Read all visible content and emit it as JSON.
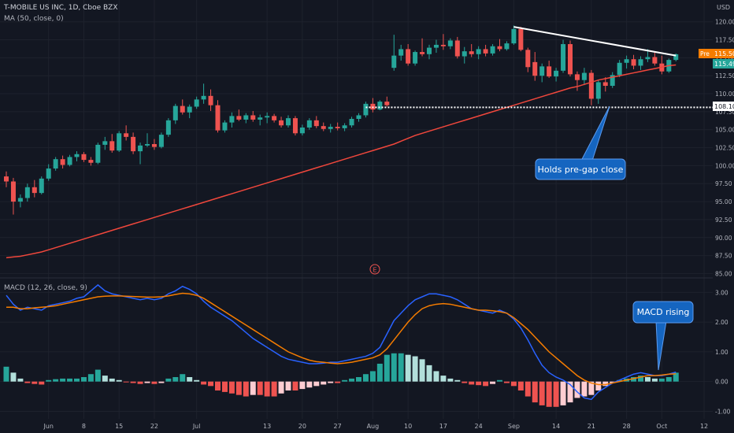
{
  "header": {
    "symbol_line": "T-MOBILE US INC, 1D, Cboe BZX",
    "ma_line": "MA (50, close, 0)",
    "currency": "USD",
    "macd_line": "MACD (12, 26, close, 9)"
  },
  "colors": {
    "background": "#131722",
    "grid": "#1e222d",
    "up": "#26a69a",
    "down": "#ef5350",
    "ma": "#f0473c",
    "macd": "#2962ff",
    "signal": "#f57c00",
    "hist_up_strong": "#26a69a",
    "hist_up_weak": "#b2dfdb",
    "hist_down_strong": "#ef5350",
    "hist_down_weak": "#ffcdd2",
    "label_blue": "#1565c0",
    "trendline": "#ffffff"
  },
  "price_axis": {
    "ticks": [
      "120.00",
      "117.50",
      "115.00",
      "112.50",
      "110.00",
      "107.50",
      "105.00",
      "102.50",
      "100.00",
      "97.50",
      "95.00",
      "92.50",
      "90.00",
      "87.50",
      "85.00"
    ],
    "tick_values": [
      120,
      117.5,
      115,
      112.5,
      110,
      107.5,
      105,
      102.5,
      100,
      97.5,
      95,
      92.5,
      90,
      87.5,
      85
    ],
    "range": [
      84.5,
      121.5
    ],
    "pre_label": "Pre",
    "pre_value": "115.50",
    "last_value": "115.49",
    "level_value": "108.10"
  },
  "macd_axis": {
    "ticks": [
      "3.00",
      "2.00",
      "1.00",
      "0.00",
      "-1.00"
    ],
    "tick_values": [
      3,
      2,
      1,
      0,
      -1
    ],
    "range": [
      -1.2,
      3.3
    ]
  },
  "time_axis": {
    "labels": [
      "Jun",
      "8",
      "15",
      "22",
      "Jul",
      "13",
      "20",
      "27",
      "Aug",
      "10",
      "17",
      "24",
      "Sep",
      "14",
      "21",
      "28",
      "Oct",
      "12"
    ],
    "label_index": [
      6,
      11,
      16,
      21,
      27,
      37,
      42,
      47,
      52,
      57,
      62,
      67,
      72,
      78,
      83,
      88,
      93,
      99
    ]
  },
  "earnings_marker": "E",
  "annotations": {
    "pregap": "Holds pre-gap close",
    "macd": "MACD rising"
  },
  "chart_data": {
    "type": "candlestick",
    "x_start_index": 0,
    "candles": [
      [
        98.5,
        99.2,
        97.0,
        97.8
      ],
      [
        97.8,
        98.3,
        93.2,
        95.0
      ],
      [
        95.0,
        96.0,
        94.2,
        95.5
      ],
      [
        95.5,
        97.5,
        95.0,
        97.0
      ],
      [
        97.0,
        98.0,
        95.6,
        96.2
      ],
      [
        96.2,
        98.5,
        96.0,
        98.2
      ],
      [
        98.2,
        100.2,
        97.9,
        99.6
      ],
      [
        99.6,
        101.2,
        99.3,
        100.9
      ],
      [
        100.9,
        101.4,
        99.6,
        100.1
      ],
      [
        100.1,
        101.5,
        99.9,
        101.2
      ],
      [
        101.2,
        102.0,
        100.6,
        101.6
      ],
      [
        101.6,
        101.9,
        100.5,
        100.8
      ],
      [
        100.8,
        101.2,
        100.0,
        100.4
      ],
      [
        100.4,
        103.2,
        100.2,
        102.9
      ],
      [
        102.9,
        104.0,
        102.2,
        103.4
      ],
      [
        103.4,
        104.4,
        101.8,
        102.1
      ],
      [
        102.1,
        104.8,
        101.9,
        104.5
      ],
      [
        104.5,
        105.6,
        103.5,
        104.0
      ],
      [
        104.0,
        104.6,
        101.6,
        102.0
      ],
      [
        102.0,
        103.2,
        100.2,
        102.8
      ],
      [
        102.8,
        104.5,
        102.6,
        103.0
      ],
      [
        103.0,
        103.7,
        102.2,
        102.6
      ],
      [
        102.6,
        104.6,
        102.4,
        104.3
      ],
      [
        104.3,
        106.6,
        104.0,
        106.3
      ],
      [
        106.3,
        108.6,
        105.8,
        108.3
      ],
      [
        108.3,
        109.2,
        107.1,
        107.4
      ],
      [
        107.4,
        108.5,
        106.6,
        108.2
      ],
      [
        108.2,
        109.6,
        107.9,
        109.2
      ],
      [
        109.2,
        111.4,
        108.6,
        109.7
      ],
      [
        109.7,
        110.6,
        107.6,
        108.4
      ],
      [
        108.4,
        109.1,
        104.6,
        104.9
      ],
      [
        104.9,
        106.3,
        104.6,
        106.0
      ],
      [
        106.0,
        107.4,
        105.3,
        106.9
      ],
      [
        106.9,
        107.8,
        106.2,
        106.4
      ],
      [
        106.4,
        107.3,
        105.9,
        107.0
      ],
      [
        107.0,
        107.6,
        106.1,
        106.4
      ],
      [
        106.4,
        107.1,
        105.6,
        106.7
      ],
      [
        106.7,
        107.4,
        105.9,
        106.9
      ],
      [
        106.9,
        107.2,
        106.0,
        106.3
      ],
      [
        106.3,
        106.8,
        105.3,
        105.6
      ],
      [
        105.6,
        107.0,
        105.3,
        106.6
      ],
      [
        106.6,
        106.9,
        104.2,
        104.5
      ],
      [
        104.5,
        105.7,
        104.2,
        105.3
      ],
      [
        105.3,
        106.6,
        105.0,
        106.3
      ],
      [
        106.3,
        106.9,
        105.2,
        105.5
      ],
      [
        105.5,
        106.0,
        104.8,
        105.1
      ],
      [
        105.1,
        105.8,
        104.6,
        105.4
      ],
      [
        105.4,
        106.0,
        104.9,
        105.2
      ],
      [
        105.2,
        105.9,
        104.8,
        105.6
      ],
      [
        105.6,
        106.8,
        105.3,
        106.5
      ],
      [
        106.5,
        107.3,
        106.1,
        107.0
      ],
      [
        107.0,
        108.9,
        106.7,
        108.6
      ],
      [
        108.6,
        109.4,
        107.4,
        107.8
      ],
      [
        107.8,
        109.1,
        107.7,
        108.9
      ],
      [
        108.9,
        109.6,
        108.2,
        108.4
      ],
      [
        113.6,
        118.2,
        113.2,
        115.3
      ],
      [
        115.3,
        116.8,
        114.6,
        116.2
      ],
      [
        116.2,
        116.9,
        113.9,
        114.2
      ],
      [
        114.2,
        116.0,
        113.9,
        115.8
      ],
      [
        115.8,
        117.7,
        115.2,
        115.5
      ],
      [
        115.5,
        116.8,
        114.8,
        116.4
      ],
      [
        116.4,
        117.5,
        115.7,
        116.8
      ],
      [
        116.8,
        118.3,
        116.1,
        116.6
      ],
      [
        116.6,
        117.7,
        116.2,
        117.4
      ],
      [
        117.4,
        117.9,
        114.9,
        115.2
      ],
      [
        115.2,
        116.5,
        114.2,
        115.9
      ],
      [
        115.9,
        116.9,
        115.1,
        115.5
      ],
      [
        115.5,
        116.6,
        114.8,
        116.2
      ],
      [
        116.2,
        116.8,
        115.2,
        115.6
      ],
      [
        115.6,
        116.9,
        115.3,
        116.6
      ],
      [
        116.6,
        117.6,
        115.9,
        116.2
      ],
      [
        116.2,
        117.3,
        116.0,
        117.0
      ],
      [
        117.0,
        119.5,
        116.8,
        119.0
      ],
      [
        119.0,
        119.3,
        115.9,
        116.1
      ],
      [
        116.1,
        116.4,
        113.0,
        113.7
      ],
      [
        114.4,
        115.8,
        111.8,
        112.5
      ],
      [
        112.5,
        114.2,
        111.6,
        113.8
      ],
      [
        113.8,
        114.6,
        112.2,
        112.4
      ],
      [
        112.4,
        113.6,
        111.7,
        113.2
      ],
      [
        113.2,
        117.5,
        112.9,
        116.9
      ],
      [
        116.9,
        117.4,
        112.4,
        112.7
      ],
      [
        112.7,
        113.1,
        110.4,
        111.9
      ],
      [
        111.9,
        113.6,
        111.2,
        112.9
      ],
      [
        112.9,
        113.3,
        108.4,
        109.3
      ],
      [
        109.3,
        111.9,
        108.6,
        111.6
      ],
      [
        111.6,
        112.3,
        110.3,
        111.1
      ],
      [
        111.1,
        113.0,
        110.8,
        112.6
      ],
      [
        112.6,
        114.7,
        112.3,
        114.3
      ],
      [
        114.3,
        115.3,
        113.5,
        114.8
      ],
      [
        114.8,
        115.4,
        113.4,
        113.9
      ],
      [
        113.9,
        115.2,
        113.3,
        114.8
      ],
      [
        114.8,
        116.2,
        114.4,
        115.1
      ],
      [
        115.1,
        115.9,
        113.9,
        114.2
      ],
      [
        114.2,
        115.3,
        112.7,
        113.1
      ],
      [
        113.1,
        114.9,
        112.9,
        114.7
      ],
      [
        114.7,
        115.6,
        114.5,
        115.49
      ]
    ],
    "ma50": [
      87.2,
      87.3,
      87.4,
      87.6,
      87.8,
      88.0,
      88.3,
      88.6,
      88.9,
      89.2,
      89.5,
      89.8,
      90.1,
      90.4,
      90.7,
      91.0,
      91.3,
      91.6,
      91.9,
      92.2,
      92.5,
      92.8,
      93.1,
      93.4,
      93.7,
      94.0,
      94.3,
      94.6,
      94.9,
      95.2,
      95.5,
      95.8,
      96.1,
      96.4,
      96.7,
      97.0,
      97.3,
      97.6,
      97.9,
      98.2,
      98.5,
      98.8,
      99.1,
      99.4,
      99.7,
      100.0,
      100.3,
      100.6,
      100.9,
      101.2,
      101.5,
      101.8,
      102.1,
      102.4,
      102.7,
      103.0,
      103.4,
      103.8,
      104.2,
      104.5,
      104.8,
      105.1,
      105.4,
      105.7,
      106.0,
      106.3,
      106.6,
      106.9,
      107.2,
      107.5,
      107.8,
      108.1,
      108.4,
      108.7,
      109.0,
      109.3,
      109.6,
      109.9,
      110.2,
      110.5,
      110.8,
      111.0,
      111.3,
      111.6,
      111.9,
      112.1,
      112.3,
      112.5,
      112.7,
      112.9,
      113.1,
      113.3,
      113.5,
      113.7,
      113.9,
      114.0
    ],
    "ma50_start_index": 0,
    "macd": [
      2.9,
      2.6,
      2.4,
      2.5,
      2.45,
      2.4,
      2.55,
      2.6,
      2.65,
      2.7,
      2.8,
      2.85,
      3.05,
      3.25,
      3.05,
      2.95,
      2.9,
      2.85,
      2.8,
      2.75,
      2.8,
      2.75,
      2.8,
      2.95,
      3.05,
      3.2,
      3.1,
      2.95,
      2.7,
      2.5,
      2.35,
      2.2,
      2.05,
      1.85,
      1.65,
      1.45,
      1.3,
      1.15,
      1.0,
      0.85,
      0.75,
      0.7,
      0.65,
      0.6,
      0.6,
      0.62,
      0.65,
      0.65,
      0.7,
      0.75,
      0.8,
      0.85,
      0.95,
      1.15,
      1.6,
      2.05,
      2.3,
      2.55,
      2.75,
      2.85,
      2.95,
      2.95,
      2.9,
      2.85,
      2.75,
      2.6,
      2.45,
      2.4,
      2.35,
      2.3,
      2.4,
      2.3,
      2.1,
      1.8,
      1.4,
      0.95,
      0.55,
      0.3,
      0.15,
      0.05,
      -0.1,
      -0.35,
      -0.55,
      -0.6,
      -0.35,
      -0.2,
      -0.05,
      0.05,
      0.15,
      0.25,
      0.3,
      0.25,
      0.2,
      0.2,
      0.25,
      0.32
    ],
    "signal": [
      2.5,
      2.5,
      2.45,
      2.45,
      2.48,
      2.5,
      2.52,
      2.55,
      2.6,
      2.65,
      2.7,
      2.75,
      2.8,
      2.85,
      2.87,
      2.88,
      2.88,
      2.87,
      2.86,
      2.85,
      2.84,
      2.84,
      2.85,
      2.88,
      2.93,
      2.97,
      2.95,
      2.9,
      2.8,
      2.65,
      2.5,
      2.35,
      2.2,
      2.05,
      1.9,
      1.75,
      1.6,
      1.45,
      1.3,
      1.15,
      1.0,
      0.9,
      0.8,
      0.72,
      0.67,
      0.65,
      0.62,
      0.6,
      0.62,
      0.65,
      0.7,
      0.75,
      0.8,
      0.9,
      1.1,
      1.4,
      1.7,
      2.0,
      2.25,
      2.45,
      2.55,
      2.6,
      2.62,
      2.6,
      2.55,
      2.5,
      2.45,
      2.4,
      2.4,
      2.38,
      2.35,
      2.3,
      2.15,
      1.95,
      1.75,
      1.5,
      1.25,
      1.0,
      0.8,
      0.6,
      0.4,
      0.2,
      0.05,
      -0.05,
      -0.1,
      -0.1,
      -0.05,
      0.0,
      0.05,
      0.1,
      0.15,
      0.2,
      0.2,
      0.22,
      0.25,
      0.26
    ],
    "histogram": [
      0.5,
      0.3,
      0.1,
      -0.05,
      -0.08,
      -0.1,
      0.05,
      0.08,
      0.1,
      0.1,
      0.1,
      0.15,
      0.25,
      0.4,
      0.2,
      0.1,
      0.05,
      -0.02,
      -0.05,
      -0.08,
      -0.05,
      -0.08,
      -0.05,
      0.1,
      0.15,
      0.25,
      0.15,
      0.05,
      -0.1,
      -0.15,
      -0.3,
      -0.35,
      -0.4,
      -0.45,
      -0.5,
      -0.45,
      -0.45,
      -0.5,
      -0.5,
      -0.4,
      -0.3,
      -0.3,
      -0.25,
      -0.2,
      -0.15,
      -0.1,
      -0.05,
      -0.05,
      0.05,
      0.1,
      0.15,
      0.25,
      0.35,
      0.6,
      0.9,
      0.95,
      0.95,
      0.9,
      0.85,
      0.75,
      0.55,
      0.35,
      0.2,
      0.1,
      0.05,
      -0.05,
      -0.1,
      -0.12,
      -0.15,
      -0.08,
      0.05,
      -0.05,
      -0.15,
      -0.3,
      -0.5,
      -0.7,
      -0.8,
      -0.85,
      -0.85,
      -0.8,
      -0.7,
      -0.55,
      -0.5,
      -0.45,
      -0.3,
      -0.15,
      -0.05,
      0.05,
      0.1,
      0.15,
      0.2,
      0.15,
      0.1,
      0.1,
      0.15,
      0.3
    ],
    "trendline": {
      "from": [
        72,
        119.3
      ],
      "to": [
        95,
        115.3
      ]
    },
    "support_level": 108.1,
    "support_from_index": 51
  }
}
